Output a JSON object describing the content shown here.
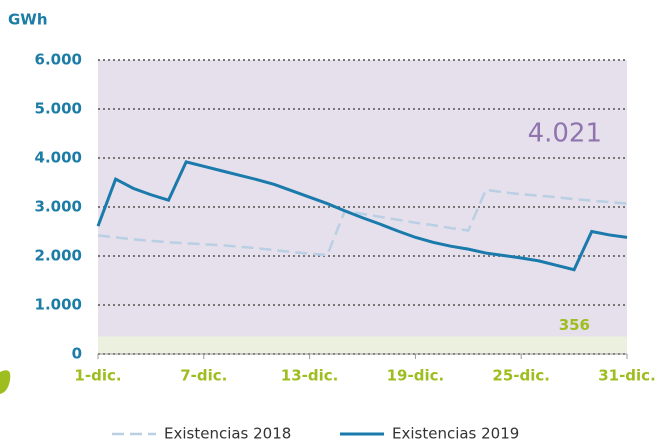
{
  "chart_data": {
    "type": "line",
    "title": "GWh",
    "x": [
      1,
      2,
      3,
      4,
      5,
      6,
      7,
      8,
      9,
      10,
      11,
      12,
      13,
      14,
      15,
      16,
      17,
      18,
      19,
      20,
      21,
      22,
      23,
      24,
      25,
      26,
      27,
      28,
      29,
      30,
      31
    ],
    "xlim": [
      1,
      31
    ],
    "xticks": [
      {
        "value": 1,
        "label": "1-dic."
      },
      {
        "value": 7,
        "label": "7-dic."
      },
      {
        "value": 13,
        "label": "13-dic."
      },
      {
        "value": 19,
        "label": "19-dic."
      },
      {
        "value": 25,
        "label": "25-dic."
      },
      {
        "value": 31,
        "label": "31-dic."
      }
    ],
    "ylim": [
      0,
      6000
    ],
    "yticks": [
      0,
      {
        "value": 1000,
        "label": "1.000"
      },
      {
        "value": 2000,
        "label": "2.000"
      },
      {
        "value": 3000,
        "label": "3.000"
      },
      {
        "value": 4000,
        "label": "4.000"
      },
      {
        "value": 5000,
        "label": "5.000"
      },
      {
        "value": 6000,
        "label": "6.000"
      }
    ],
    "grid": true,
    "background": "#e6e0ec",
    "band": {
      "value": 356,
      "label": "356",
      "color": "#ebf1de"
    },
    "annotation": {
      "value": 4021,
      "label": "4.021"
    },
    "legend": "bottom",
    "series": [
      {
        "name": "Existencias 2018",
        "color": "#b9cfe3",
        "dash": true,
        "values": [
          2420,
          2380,
          2340,
          2310,
          2280,
          2260,
          2240,
          2220,
          2190,
          2160,
          2120,
          2080,
          2050,
          2020,
          2920,
          2860,
          2800,
          2740,
          2680,
          2630,
          2570,
          2520,
          3350,
          3300,
          3260,
          3230,
          3200,
          3160,
          3130,
          3100,
          3070
        ]
      },
      {
        "name": "Existencias 2019",
        "color": "#1a7aab",
        "dash": false,
        "values": [
          2610,
          3570,
          3380,
          3250,
          3140,
          3920,
          3830,
          3740,
          3650,
          3560,
          3460,
          3330,
          3200,
          3070,
          2920,
          2780,
          2650,
          2510,
          2380,
          2280,
          2200,
          2140,
          2060,
          2010,
          1960,
          1900,
          1810,
          1720,
          2500,
          2430,
          2380
        ]
      }
    ]
  }
}
